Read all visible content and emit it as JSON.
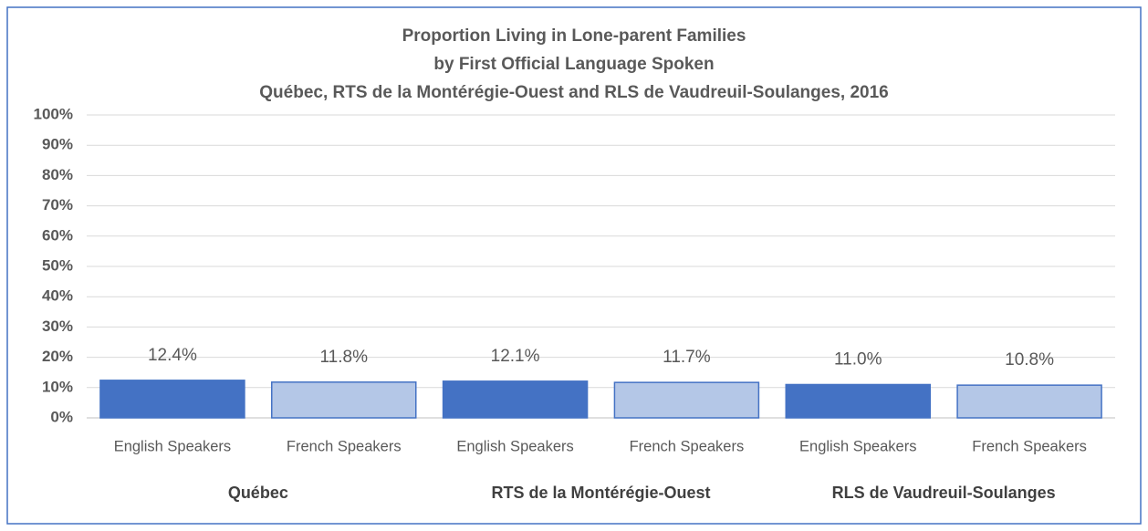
{
  "chart_data": {
    "type": "bar",
    "title": [
      "Proportion Living in Lone-parent Families",
      "by First Official Language Spoken",
      "Québec, RTS de la Montérégie-Ouest and RLS de Vaudreuil-Soulanges,  2016"
    ],
    "categories": [
      "English Speakers",
      "French Speakers",
      "English Speakers",
      "French Speakers",
      "English Speakers",
      "French Speakers"
    ],
    "groups": [
      "Québec",
      "RTS de la Montérégie-Ouest",
      "RLS de Vaudreuil-Soulanges"
    ],
    "values": [
      12.4,
      11.8,
      12.1,
      11.7,
      11.0,
      10.8
    ],
    "value_labels": [
      "12.4%",
      "11.8%",
      "12.1%",
      "11.7%",
      "11.0%",
      "10.8%"
    ],
    "colors": [
      "#4472c4",
      "#b4c7e7",
      "#4472c4",
      "#b4c7e7",
      "#4472c4",
      "#b4c7e7"
    ],
    "edge_color": "#4472c4",
    "ylim": [
      0,
      100
    ],
    "yticks": [
      {
        "value": 0,
        "label": "0%"
      },
      {
        "value": 10,
        "label": "10%"
      },
      {
        "value": 20,
        "label": "20%"
      },
      {
        "value": 30,
        "label": "30%"
      },
      {
        "value": 40,
        "label": "40%"
      },
      {
        "value": 50,
        "label": "50%"
      },
      {
        "value": 60,
        "label": "60%"
      },
      {
        "value": 70,
        "label": "70%"
      },
      {
        "value": 80,
        "label": "80%"
      },
      {
        "value": 90,
        "label": "90%"
      },
      {
        "value": 100,
        "label": "100%"
      }
    ],
    "grid": true
  }
}
